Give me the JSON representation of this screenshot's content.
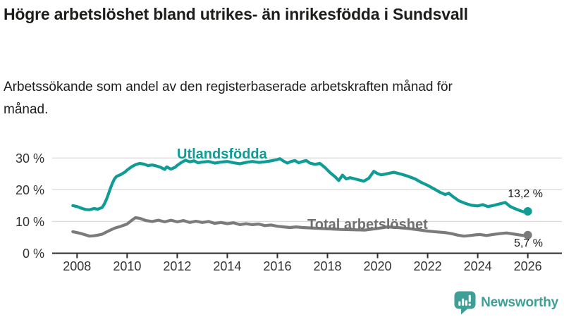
{
  "header": {
    "title": "Högre arbetslöshet bland utrikes- än inrikesfödda i Sundsvall",
    "subtitle": "Arbetssökande som andel av den registerbaserade arbetskraften månad för månad."
  },
  "chart_data": {
    "type": "line",
    "title": "Högre arbetslöshet bland utrikes- än inrikesfödda i Sundsvall",
    "xlabel": "",
    "ylabel": "",
    "unit": "%",
    "grid": true,
    "xlim": [
      2007.6,
      2026.7
    ],
    "ylim": [
      0,
      33
    ],
    "x_ticks": [
      {
        "value": 2008,
        "label": "2008"
      },
      {
        "value": 2010,
        "label": "2010"
      },
      {
        "value": 2012,
        "label": "2012"
      },
      {
        "value": 2014,
        "label": "2014"
      },
      {
        "value": 2016,
        "label": "2016"
      },
      {
        "value": 2018,
        "label": "2018"
      },
      {
        "value": 2020,
        "label": "2020"
      },
      {
        "value": 2022,
        "label": "2022"
      },
      {
        "value": 2024,
        "label": "2024"
      },
      {
        "value": 2026,
        "label": "2026"
      }
    ],
    "y_ticks": [
      {
        "value": 0,
        "label": "0 %"
      },
      {
        "value": 10,
        "label": "10 %"
      },
      {
        "value": 20,
        "label": "20 %"
      },
      {
        "value": 30,
        "label": "30 %"
      }
    ],
    "series": [
      {
        "id": "utlandsfodda",
        "label": "Utlandsfödda",
        "color": "#0e9c94",
        "end_label": "13,2 %",
        "end_value": 13.2,
        "points": [
          [
            2007.83,
            15.0
          ],
          [
            2008.0,
            14.7
          ],
          [
            2008.17,
            14.2
          ],
          [
            2008.33,
            13.8
          ],
          [
            2008.5,
            13.7
          ],
          [
            2008.67,
            14.1
          ],
          [
            2008.83,
            13.9
          ],
          [
            2009.0,
            14.4
          ],
          [
            2009.08,
            15.4
          ],
          [
            2009.17,
            16.9
          ],
          [
            2009.25,
            18.6
          ],
          [
            2009.33,
            20.4
          ],
          [
            2009.42,
            22.2
          ],
          [
            2009.5,
            23.5
          ],
          [
            2009.58,
            24.2
          ],
          [
            2009.75,
            24.8
          ],
          [
            2009.92,
            25.6
          ],
          [
            2010.0,
            26.2
          ],
          [
            2010.17,
            27.2
          ],
          [
            2010.33,
            27.9
          ],
          [
            2010.5,
            28.3
          ],
          [
            2010.67,
            28.1
          ],
          [
            2010.83,
            27.6
          ],
          [
            2011.0,
            27.8
          ],
          [
            2011.17,
            27.5
          ],
          [
            2011.33,
            27.1
          ],
          [
            2011.5,
            26.4
          ],
          [
            2011.58,
            27.2
          ],
          [
            2011.75,
            26.5
          ],
          [
            2011.92,
            27.1
          ],
          [
            2012.0,
            27.7
          ],
          [
            2012.17,
            28.6
          ],
          [
            2012.33,
            29.3
          ],
          [
            2012.5,
            28.8
          ],
          [
            2012.67,
            29.1
          ],
          [
            2012.83,
            28.5
          ],
          [
            2013.0,
            28.7
          ],
          [
            2013.25,
            28.9
          ],
          [
            2013.5,
            28.4
          ],
          [
            2013.75,
            28.7
          ],
          [
            2014.0,
            28.9
          ],
          [
            2014.25,
            28.5
          ],
          [
            2014.5,
            28.2
          ],
          [
            2014.75,
            28.6
          ],
          [
            2015.0,
            28.9
          ],
          [
            2015.25,
            28.6
          ],
          [
            2015.5,
            28.8
          ],
          [
            2015.75,
            29.1
          ],
          [
            2016.0,
            29.5
          ],
          [
            2016.1,
            29.8
          ],
          [
            2016.25,
            29.0
          ],
          [
            2016.4,
            28.4
          ],
          [
            2016.55,
            28.9
          ],
          [
            2016.7,
            29.2
          ],
          [
            2016.85,
            28.5
          ],
          [
            2017.0,
            28.9
          ],
          [
            2017.15,
            29.2
          ],
          [
            2017.3,
            28.4
          ],
          [
            2017.5,
            28.0
          ],
          [
            2017.7,
            28.3
          ],
          [
            2017.9,
            27.0
          ],
          [
            2018.1,
            25.4
          ],
          [
            2018.3,
            24.1
          ],
          [
            2018.45,
            22.9
          ],
          [
            2018.6,
            24.6
          ],
          [
            2018.75,
            23.4
          ],
          [
            2018.9,
            23.8
          ],
          [
            2019.1,
            23.4
          ],
          [
            2019.3,
            23.0
          ],
          [
            2019.45,
            22.7
          ],
          [
            2019.65,
            23.6
          ],
          [
            2019.85,
            25.8
          ],
          [
            2020.0,
            25.1
          ],
          [
            2020.15,
            24.7
          ],
          [
            2020.4,
            25.1
          ],
          [
            2020.65,
            25.5
          ],
          [
            2020.9,
            25.0
          ],
          [
            2021.2,
            24.3
          ],
          [
            2021.5,
            23.4
          ],
          [
            2021.75,
            22.3
          ],
          [
            2022.0,
            21.4
          ],
          [
            2022.25,
            20.3
          ],
          [
            2022.5,
            19.2
          ],
          [
            2022.7,
            18.5
          ],
          [
            2022.85,
            18.9
          ],
          [
            2023.0,
            17.9
          ],
          [
            2023.25,
            16.5
          ],
          [
            2023.5,
            15.7
          ],
          [
            2023.75,
            15.1
          ],
          [
            2024.0,
            14.9
          ],
          [
            2024.2,
            15.3
          ],
          [
            2024.4,
            14.7
          ],
          [
            2024.6,
            15.0
          ],
          [
            2024.85,
            15.5
          ],
          [
            2025.1,
            16.0
          ],
          [
            2025.3,
            14.7
          ],
          [
            2025.5,
            14.0
          ],
          [
            2025.7,
            13.4
          ],
          [
            2025.85,
            13.0
          ],
          [
            2026.0,
            13.2
          ]
        ]
      },
      {
        "id": "total",
        "label": "Total arbetslöshet",
        "color": "#7b7b7b",
        "end_label": "5,7 %",
        "end_value": 5.7,
        "points": [
          [
            2007.83,
            6.8
          ],
          [
            2008.0,
            6.5
          ],
          [
            2008.17,
            6.2
          ],
          [
            2008.33,
            5.8
          ],
          [
            2008.5,
            5.4
          ],
          [
            2008.67,
            5.5
          ],
          [
            2008.83,
            5.7
          ],
          [
            2009.0,
            6.0
          ],
          [
            2009.25,
            7.0
          ],
          [
            2009.5,
            7.9
          ],
          [
            2009.75,
            8.5
          ],
          [
            2010.0,
            9.2
          ],
          [
            2010.17,
            10.3
          ],
          [
            2010.33,
            11.2
          ],
          [
            2010.5,
            11.0
          ],
          [
            2010.75,
            10.3
          ],
          [
            2011.0,
            10.0
          ],
          [
            2011.25,
            10.4
          ],
          [
            2011.5,
            9.9
          ],
          [
            2011.75,
            10.4
          ],
          [
            2012.0,
            9.9
          ],
          [
            2012.25,
            10.3
          ],
          [
            2012.5,
            9.7
          ],
          [
            2012.75,
            10.1
          ],
          [
            2013.0,
            9.7
          ],
          [
            2013.25,
            10.0
          ],
          [
            2013.5,
            9.4
          ],
          [
            2013.75,
            9.7
          ],
          [
            2014.0,
            9.3
          ],
          [
            2014.25,
            9.6
          ],
          [
            2014.5,
            9.0
          ],
          [
            2014.75,
            9.3
          ],
          [
            2015.0,
            9.0
          ],
          [
            2015.25,
            9.2
          ],
          [
            2015.5,
            8.7
          ],
          [
            2015.75,
            8.9
          ],
          [
            2016.0,
            8.5
          ],
          [
            2016.25,
            8.3
          ],
          [
            2016.5,
            8.1
          ],
          [
            2016.75,
            8.3
          ],
          [
            2017.0,
            8.1
          ],
          [
            2017.5,
            7.9
          ],
          [
            2018.0,
            7.7
          ],
          [
            2018.5,
            7.5
          ],
          [
            2019.0,
            7.4
          ],
          [
            2019.5,
            7.3
          ],
          [
            2020.0,
            7.8
          ],
          [
            2020.4,
            8.3
          ],
          [
            2020.8,
            8.1
          ],
          [
            2021.2,
            7.8
          ],
          [
            2021.6,
            7.4
          ],
          [
            2022.0,
            7.0
          ],
          [
            2022.4,
            6.7
          ],
          [
            2022.7,
            6.5
          ],
          [
            2023.0,
            6.1
          ],
          [
            2023.2,
            5.7
          ],
          [
            2023.45,
            5.4
          ],
          [
            2023.7,
            5.6
          ],
          [
            2023.9,
            5.8
          ],
          [
            2024.1,
            5.9
          ],
          [
            2024.35,
            5.6
          ],
          [
            2024.6,
            5.9
          ],
          [
            2024.9,
            6.2
          ],
          [
            2025.15,
            6.4
          ],
          [
            2025.4,
            6.1
          ],
          [
            2025.65,
            5.8
          ],
          [
            2025.85,
            5.6
          ],
          [
            2026.0,
            5.7
          ]
        ]
      }
    ],
    "colors": {
      "accent_teal": "#0e9c94",
      "series_gray": "#7b7b7b",
      "gridline": "#dcdcdc",
      "axis": "#2e2e2e",
      "tick_label": "#333333"
    }
  },
  "footer": {
    "brand": "Newsworthy",
    "brand_color": "#3f9e96",
    "logo_icon": "bar-chart-speech-bubble"
  }
}
